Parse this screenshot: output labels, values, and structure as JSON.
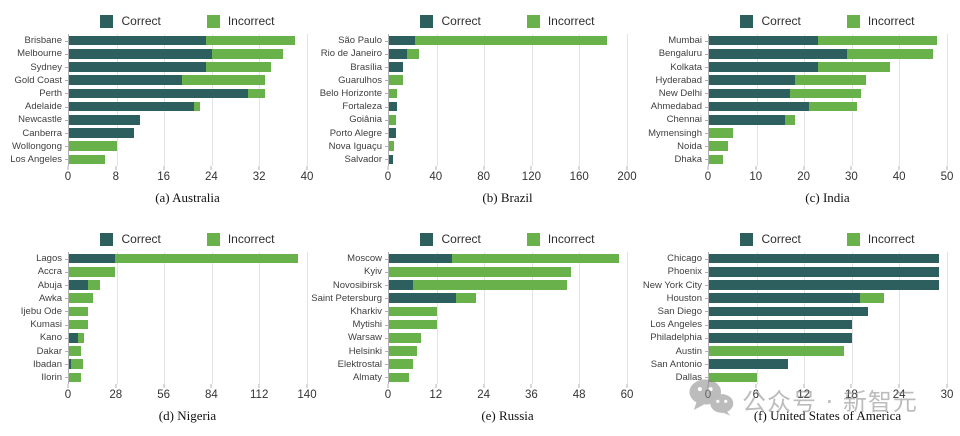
{
  "figure": {
    "legend_labels": {
      "correct": "Correct",
      "incorrect": "Incorrect"
    }
  },
  "colors": {
    "correct": "#2d5f5e",
    "incorrect": "#69b14b",
    "grid": "#e3e3e3",
    "axis": "#b0b0b0",
    "label_text": "#3f3f3f",
    "caption_text": "#111111",
    "watermark": "#878787"
  },
  "watermark": {
    "text": "公众号 · 新智元",
    "icon": "wechat-logo-icon"
  },
  "chart_data": [
    {
      "id": "australia",
      "type": "bar",
      "orientation": "horizontal",
      "stacked": true,
      "title": "(a) Australia",
      "categories": [
        "Brisbane",
        "Melbourne",
        "Sydney",
        "Gold Coast",
        "Perth",
        "Adelaide",
        "Newcastle",
        "Canberra",
        "Wollongong",
        "Los Angeles"
      ],
      "series": [
        {
          "name": "Correct",
          "color_key": "correct",
          "values": [
            23,
            24,
            23,
            19,
            30,
            21,
            12,
            11,
            0,
            0
          ]
        },
        {
          "name": "Incorrect",
          "color_key": "incorrect",
          "values": [
            15,
            12,
            11,
            14,
            3,
            1,
            0,
            0,
            8,
            6
          ]
        }
      ],
      "xlim": [
        0,
        40
      ],
      "xticks": [
        0,
        8,
        16,
        24,
        32,
        40
      ],
      "grid": true,
      "legend_position": "top"
    },
    {
      "id": "brazil",
      "type": "bar",
      "orientation": "horizontal",
      "stacked": true,
      "title": "(b) Brazil",
      "categories": [
        "São Paulo",
        "Rio de Janeiro",
        "Brasília",
        "Guarulhos",
        "Belo Horizonte",
        "Fortaleza",
        "Goiânia",
        "Porto Alegre",
        "Nova Iguaçu",
        "Salvador"
      ],
      "series": [
        {
          "name": "Correct",
          "color_key": "correct",
          "values": [
            22,
            15,
            12,
            0,
            0,
            7,
            0,
            6,
            0,
            3
          ]
        },
        {
          "name": "Incorrect",
          "color_key": "incorrect",
          "values": [
            161,
            10,
            0,
            12,
            7,
            0,
            6,
            0,
            4,
            0
          ]
        }
      ],
      "xlim": [
        0,
        200
      ],
      "xticks": [
        0,
        40,
        80,
        120,
        160,
        200
      ],
      "grid": true,
      "legend_position": "top"
    },
    {
      "id": "india",
      "type": "bar",
      "orientation": "horizontal",
      "stacked": true,
      "title": "(c) India",
      "categories": [
        "Mumbai",
        "Bengaluru",
        "Kolkata",
        "Hyderabad",
        "New Delhi",
        "Ahmedabad",
        "Chennai",
        "Mymensingh",
        "Noida",
        "Dhaka"
      ],
      "series": [
        {
          "name": "Correct",
          "color_key": "correct",
          "values": [
            23,
            29,
            23,
            18,
            17,
            21,
            16,
            0,
            0,
            0
          ]
        },
        {
          "name": "Incorrect",
          "color_key": "incorrect",
          "values": [
            25,
            18,
            15,
            15,
            15,
            10,
            2,
            5,
            4,
            3
          ]
        }
      ],
      "xlim": [
        0,
        50
      ],
      "xticks": [
        0,
        10,
        20,
        30,
        40,
        50
      ],
      "grid": true,
      "legend_position": "top"
    },
    {
      "id": "nigeria",
      "type": "bar",
      "orientation": "horizontal",
      "stacked": true,
      "title": "(d) Nigeria",
      "categories": [
        "Lagos",
        "Accra",
        "Abuja",
        "Awka",
        "Ijebu Ode",
        "Kumasi",
        "Kano",
        "Dakar",
        "Ibadan",
        "Ilorin"
      ],
      "series": [
        {
          "name": "Correct",
          "color_key": "correct",
          "values": [
            27,
            0,
            11,
            0,
            0,
            0,
            5,
            0,
            1,
            0
          ]
        },
        {
          "name": "Incorrect",
          "color_key": "incorrect",
          "values": [
            108,
            27,
            7,
            14,
            11,
            11,
            4,
            7,
            7,
            7
          ]
        }
      ],
      "xlim": [
        0,
        140
      ],
      "xticks": [
        0,
        28,
        56,
        84,
        112,
        140
      ],
      "grid": true,
      "legend_position": "top"
    },
    {
      "id": "russia",
      "type": "bar",
      "orientation": "horizontal",
      "stacked": true,
      "title": "(e) Russia",
      "categories": [
        "Moscow",
        "Kyiv",
        "Novosibirsk",
        "Saint Petersburg",
        "Kharkiv",
        "Mytishi",
        "Warsaw",
        "Helsinki",
        "Elektrostal",
        "Almaty"
      ],
      "series": [
        {
          "name": "Correct",
          "color_key": "correct",
          "values": [
            16,
            0,
            6,
            17,
            0,
            0,
            0,
            0,
            0,
            0
          ]
        },
        {
          "name": "Incorrect",
          "color_key": "incorrect",
          "values": [
            42,
            46,
            39,
            5,
            12,
            12,
            8,
            7,
            6,
            5
          ]
        }
      ],
      "xlim": [
        0,
        60
      ],
      "xticks": [
        0,
        12,
        24,
        36,
        48,
        60
      ],
      "grid": true,
      "legend_position": "top"
    },
    {
      "id": "usa",
      "type": "bar",
      "orientation": "horizontal",
      "stacked": true,
      "title": "(f) United States of America",
      "categories": [
        "Chicago",
        "Phoenix",
        "New York City",
        "Houston",
        "San Diego",
        "Los Angeles",
        "Philadelphia",
        "Austin",
        "San Antonio",
        "Dallas"
      ],
      "series": [
        {
          "name": "Correct",
          "color_key": "correct",
          "values": [
            29,
            29,
            29,
            19,
            20,
            18,
            18,
            0,
            10,
            0
          ]
        },
        {
          "name": "Incorrect",
          "color_key": "incorrect",
          "values": [
            0,
            0,
            0,
            3,
            0,
            0,
            0,
            17,
            0,
            6
          ]
        }
      ],
      "xlim": [
        0,
        30
      ],
      "xticks": [
        0,
        6,
        12,
        18,
        24,
        30
      ],
      "grid": true,
      "legend_position": "top"
    }
  ]
}
